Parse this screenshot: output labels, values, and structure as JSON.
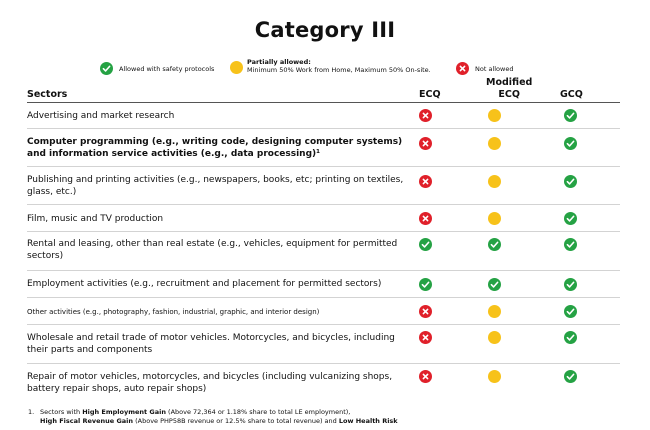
{
  "title": "Category III",
  "legend": {
    "allowed": {
      "label": "Allowed with safety protocols",
      "icon": "check-icon",
      "color": "#25a244"
    },
    "partial": {
      "label": "Partially allowed:",
      "detail": "Minimum 50% Work from Home, Maximum 50% On-site.",
      "icon": "partial-dot-icon",
      "color": "#f7c21a"
    },
    "not_allowed": {
      "label": "Not allowed",
      "icon": "x-icon",
      "color": "#e0202a"
    }
  },
  "headers": {
    "sectors": "Sectors",
    "ecq": "ECQ",
    "mecq_line1": "Modified",
    "mecq_line2": "ECQ",
    "gcq": "GCQ"
  },
  "rows": [
    {
      "label": "Advertising and market research",
      "ecq": "not",
      "mecq": "partial",
      "gcq": "allowed"
    },
    {
      "label": "Computer programming (e.g., writing code, designing computer systems)  and information service activities (e.g., data processing)¹",
      "ecq": "not",
      "mecq": "partial",
      "gcq": "allowed"
    },
    {
      "label": "Publishing and printing activities (e.g., newspapers, books, etc; printing on textiles, glass, etc.)",
      "ecq": "not",
      "mecq": "partial",
      "gcq": "allowed"
    },
    {
      "label": "Film, music and TV production",
      "ecq": "not",
      "mecq": "partial",
      "gcq": "allowed"
    },
    {
      "label": "Rental and leasing, other than real estate (e.g., vehicles, equipment for permitted sectors)",
      "ecq": "allowed",
      "mecq": "allowed",
      "gcq": "allowed"
    },
    {
      "label": "Employment activities (e.g., recruitment and placement for permitted sectors)",
      "ecq": "allowed",
      "mecq": "allowed",
      "gcq": "allowed"
    },
    {
      "label": "Other activities (e.g., photography, fashion, industrial, graphic, and interior design)",
      "ecq": "not",
      "mecq": "partial",
      "gcq": "allowed"
    },
    {
      "label": "Wholesale and retail trade of motor vehicles. Motorcycles, and bicycles, including their parts and components",
      "ecq": "not",
      "mecq": "partial",
      "gcq": "allowed"
    },
    {
      "label": "Repair of motor vehicles, motorcycles, and bicycles (including vulcanizing shops, battery repair shops, auto repair shops)",
      "ecq": "not",
      "mecq": "partial",
      "gcq": "allowed"
    }
  ],
  "footnote": {
    "number": "1.",
    "line1_a": "Sectors with ",
    "line1_b": "High Employment Gain",
    "line1_c": " (Above 72,364 or 1.18% share to total LE employment),",
    "line2_a": "High Fiscal Revenue Gain",
    "line2_b": " (Above PHP58B revenue or 12.5% share to total revenue) and ",
    "line2_c": "Low Health Risk"
  }
}
